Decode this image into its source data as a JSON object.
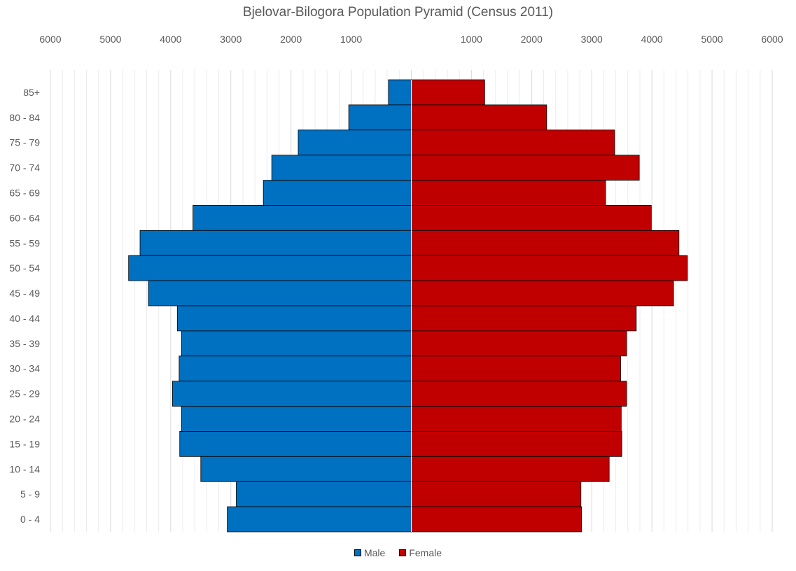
{
  "chart_data": {
    "type": "bar",
    "orientation": "horizontal-pyramid",
    "title": "Bjelovar-Bilogora Population Pyramid (Census 2011)",
    "categories": [
      "85+",
      "80 - 84",
      "75 - 79",
      "70 - 74",
      "65 - 69",
      "60 - 64",
      "55 - 59",
      "50 - 54",
      "45 - 49",
      "40 - 44",
      "35 - 39",
      "30 - 34",
      "25 - 29",
      "20 - 24",
      "15 - 19",
      "10 - 14",
      "5 - 9",
      "0 - 4"
    ],
    "series": [
      {
        "name": "Male",
        "color": "#0070C0",
        "values": [
          380,
          1040,
          1880,
          2320,
          2460,
          3630,
          4510,
          4700,
          4370,
          3890,
          3820,
          3860,
          3970,
          3820,
          3850,
          3500,
          2910,
          3060
        ]
      },
      {
        "name": "Female",
        "color": "#C00000",
        "values": [
          1220,
          2250,
          3380,
          3790,
          3230,
          3990,
          4450,
          4590,
          4360,
          3740,
          3580,
          3480,
          3580,
          3490,
          3500,
          3290,
          2820,
          2830
        ]
      }
    ],
    "xlim": [
      -6000,
      6000
    ],
    "x_ticks": [
      -6000,
      -5000,
      -4000,
      -3000,
      -2000,
      -1000,
      1000,
      2000,
      3000,
      4000,
      5000,
      6000
    ],
    "x_tick_labels": [
      "6000",
      "5000",
      "4000",
      "3000",
      "2000",
      "1000",
      "1000",
      "2000",
      "3000",
      "4000",
      "5000",
      "6000"
    ],
    "x_axis_position": "top",
    "grid": true,
    "legend": {
      "position": "bottom",
      "entries": [
        "Male",
        "Female"
      ]
    }
  }
}
